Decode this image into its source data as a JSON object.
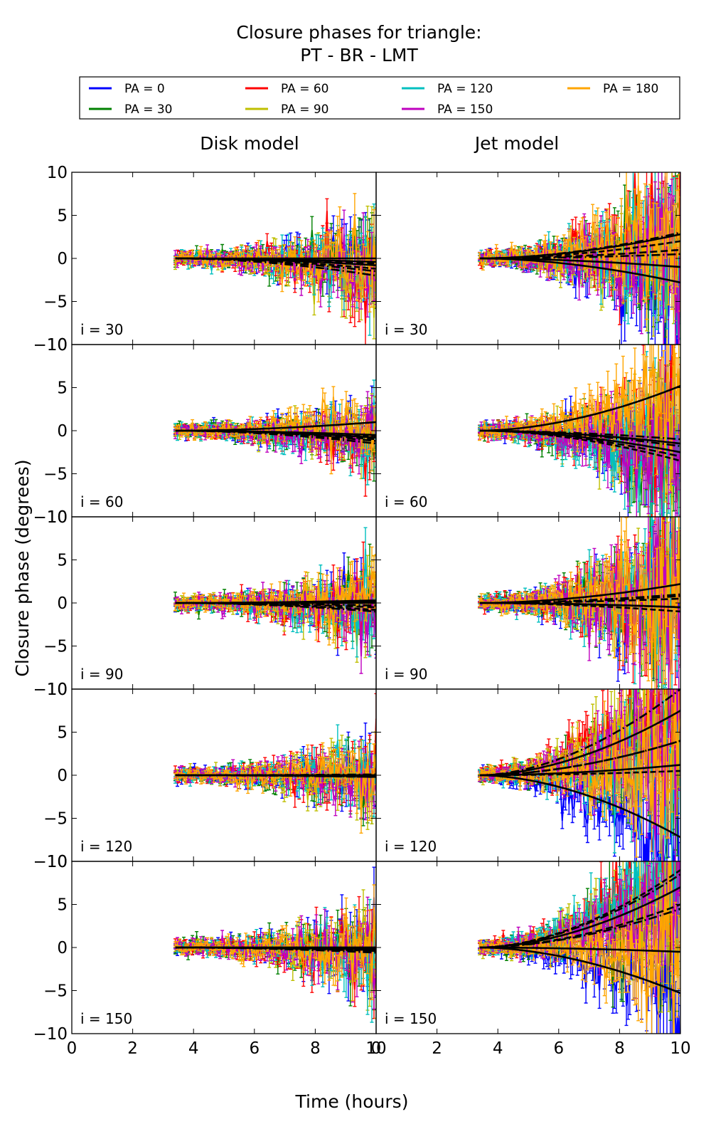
{
  "title_line1": "Closure phases for triangle:",
  "title_line2": "PT - BR - LMT",
  "column_titles": [
    "Disk model",
    "Jet model"
  ],
  "ylabel": "Closure phase (degrees)",
  "xlabel": "Time (hours)",
  "legend": [
    {
      "label": "PA = 0",
      "color": "#0000ff"
    },
    {
      "label": "PA = 30",
      "color": "#008000"
    },
    {
      "label": "PA = 60",
      "color": "#ff0000"
    },
    {
      "label": "PA = 90",
      "color": "#bfbf00"
    },
    {
      "label": "PA = 120",
      "color": "#00bfbf"
    },
    {
      "label": "PA = 150",
      "color": "#bf00bf"
    },
    {
      "label": "PA = 180",
      "color": "#ffa500"
    }
  ],
  "row_labels": [
    "i = 30",
    "i = 60",
    "i = 90",
    "i = 120",
    "i = 150"
  ],
  "chart_data": {
    "type": "line",
    "title": "Closure phases for triangle:\nPT - BR - LMT",
    "xlabel": "Time (hours)",
    "ylabel": "Closure phase (degrees)",
    "xlim": [
      0,
      10
    ],
    "ylim": [
      -10,
      10
    ],
    "x_ticks": [
      "0",
      "2",
      "4",
      "6",
      "8",
      "10"
    ],
    "y_ticks": [
      "10",
      "5",
      "0",
      "−5",
      "−10"
    ],
    "legend_position": "top",
    "data_time_range": [
      3.4,
      10
    ],
    "series_names": [
      "PA = 0",
      "PA = 30",
      "PA = 60",
      "PA = 90",
      "PA = 120",
      "PA = 150",
      "PA = 180"
    ],
    "panels": [
      {
        "column": "Disk model",
        "row": "i = 30",
        "model_end_values": [
          0.0,
          -0.6,
          -1.5,
          -0.8,
          -1.2,
          -2.0,
          -0.4
        ],
        "noise_end": 4.5
      },
      {
        "column": "Disk model",
        "row": "i = 60",
        "model_end_values": [
          -0.5,
          -1.0,
          -1.5,
          -0.8,
          -0.6,
          -1.2,
          1.0
        ],
        "noise_end": 3.0
      },
      {
        "column": "Disk model",
        "row": "i = 90",
        "model_end_values": [
          0.3,
          -0.5,
          -1.0,
          0.0,
          -0.8,
          -0.3,
          0.2
        ],
        "noise_end": 3.5
      },
      {
        "column": "Disk model",
        "row": "i = 120",
        "model_end_values": [
          0.0,
          -0.2,
          0.1,
          -0.1,
          0.0,
          -0.2,
          0.0
        ],
        "noise_end": 3.5
      },
      {
        "column": "Disk model",
        "row": "i = 150",
        "model_end_values": [
          0.0,
          -0.3,
          -0.5,
          -0.2,
          -0.4,
          -0.6,
          0.0
        ],
        "noise_end": 4.0
      },
      {
        "column": "Jet model",
        "row": "i = 30",
        "model_end_values": [
          -2.8,
          1.0,
          3.0,
          -1.0,
          2.0,
          0.5,
          2.8
        ],
        "noise_end": 8.0
      },
      {
        "column": "Jet model",
        "row": "i = 60",
        "model_end_values": [
          -1.5,
          -3.0,
          -1.0,
          -2.5,
          -3.5,
          -1.8,
          5.2
        ],
        "noise_end": 8.0
      },
      {
        "column": "Jet model",
        "row": "i = 90",
        "model_end_values": [
          -0.5,
          0.5,
          1.0,
          -0.5,
          -1.0,
          0.8,
          2.2
        ],
        "noise_end": 9.0
      },
      {
        "column": "Jet model",
        "row": "i = 120",
        "model_end_values": [
          -7.2,
          4.0,
          10.0,
          7.5,
          0.5,
          4.0,
          1.2
        ],
        "noise_end": 10.0
      },
      {
        "column": "Jet model",
        "row": "i = 150",
        "model_end_values": [
          -5.3,
          5.0,
          8.5,
          7.0,
          9.0,
          4.5,
          -0.5
        ],
        "noise_end": 9.0
      }
    ]
  }
}
